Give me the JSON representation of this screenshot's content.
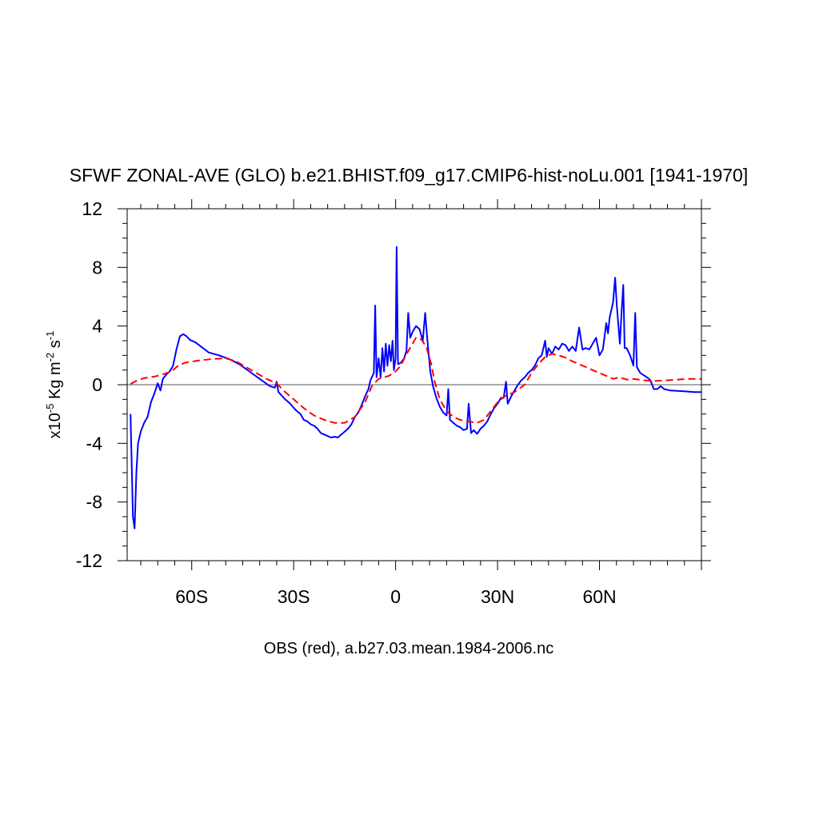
{
  "chart_data": {
    "type": "line",
    "title": "SFWF ZONAL-AVE (GLO) b.e21.BHIST.f09_g17.CMIP6-hist-noLu.001 [1941-1970]",
    "ylabel": {
      "prefix": "x10",
      "exp": "-5",
      "unit1": " Kg m",
      "exp2": "-2",
      "unit2": " s",
      "exp3": "-1"
    },
    "caption": "OBS (red), a.b27.03.mean.1984-2006.nc",
    "xlim": [
      -79,
      90
    ],
    "ylim": [
      -12,
      12
    ],
    "x_ticks": [
      {
        "value": -60,
        "label": "60S"
      },
      {
        "value": -30,
        "label": "30S"
      },
      {
        "value": 0,
        "label": "0"
      },
      {
        "value": 30,
        "label": "30N"
      },
      {
        "value": 60,
        "label": "60N"
      }
    ],
    "y_ticks": [
      {
        "value": 12,
        "label": "12"
      },
      {
        "value": 8,
        "label": "8"
      },
      {
        "value": 4,
        "label": "4"
      },
      {
        "value": 0,
        "label": "0"
      },
      {
        "value": -4,
        "label": "-4"
      },
      {
        "value": -8,
        "label": "-8"
      },
      {
        "value": -12,
        "label": "-12"
      }
    ],
    "zero_line": true,
    "series": [
      {
        "color": "#0000ff",
        "dash": "solid",
        "points": [
          [
            -78,
            -2
          ],
          [
            -77.3,
            -9
          ],
          [
            -76.8,
            -9.8
          ],
          [
            -76.3,
            -6
          ],
          [
            -75.8,
            -4
          ],
          [
            -75,
            -3.2
          ],
          [
            -74,
            -2.6
          ],
          [
            -73,
            -2.2
          ],
          [
            -72,
            -1.2
          ],
          [
            -71,
            -0.6
          ],
          [
            -70,
            0.1
          ],
          [
            -69.2,
            -0.4
          ],
          [
            -68.5,
            0.4
          ],
          [
            -67.5,
            0.7
          ],
          [
            -66.5,
            0.9
          ],
          [
            -65.5,
            1.3
          ],
          [
            -64.5,
            2.4
          ],
          [
            -63.5,
            3.3
          ],
          [
            -62.5,
            3.45
          ],
          [
            -61.5,
            3.3
          ],
          [
            -60.5,
            3.05
          ],
          [
            -59,
            2.9
          ],
          [
            -57,
            2.55
          ],
          [
            -55,
            2.2
          ],
          [
            -52,
            2.0
          ],
          [
            -49,
            1.75
          ],
          [
            -46,
            1.4
          ],
          [
            -43,
            0.9
          ],
          [
            -40,
            0.4
          ],
          [
            -37,
            -0.1
          ],
          [
            -35.5,
            -0.2
          ],
          [
            -35,
            0.2
          ],
          [
            -34.5,
            -0.5
          ],
          [
            -32.5,
            -1.0
          ],
          [
            -31,
            -1.3
          ],
          [
            -29.5,
            -1.7
          ],
          [
            -28,
            -2.0
          ],
          [
            -27,
            -2.4
          ],
          [
            -26,
            -2.5
          ],
          [
            -25,
            -2.7
          ],
          [
            -24,
            -2.8
          ],
          [
            -23,
            -3.0
          ],
          [
            -22,
            -3.3
          ],
          [
            -21,
            -3.4
          ],
          [
            -20,
            -3.5
          ],
          [
            -19,
            -3.6
          ],
          [
            -18,
            -3.55
          ],
          [
            -17,
            -3.6
          ],
          [
            -16,
            -3.4
          ],
          [
            -15,
            -3.2
          ],
          [
            -14,
            -3.0
          ],
          [
            -13,
            -2.7
          ],
          [
            -12,
            -2.2
          ],
          [
            -11,
            -1.9
          ],
          [
            -10,
            -1.4
          ],
          [
            -9,
            -0.8
          ],
          [
            -8,
            -0.3
          ],
          [
            -7.4,
            0.3
          ],
          [
            -6.4,
            0.8
          ],
          [
            -6,
            5.4
          ],
          [
            -5.6,
            0.5
          ],
          [
            -5,
            1.8
          ],
          [
            -4.4,
            0.5
          ],
          [
            -3.9,
            2.5
          ],
          [
            -3.4,
            0.9
          ],
          [
            -2.9,
            2.8
          ],
          [
            -2.4,
            1.3
          ],
          [
            -1.9,
            2.7
          ],
          [
            -1.4,
            1.6
          ],
          [
            -0.9,
            3.0
          ],
          [
            -0.5,
            1.0
          ],
          [
            0,
            1.8
          ],
          [
            0.3,
            9.4
          ],
          [
            0.7,
            1.4
          ],
          [
            1.6,
            1.5
          ],
          [
            2.5,
            1.8
          ],
          [
            3.2,
            2.3
          ],
          [
            3.7,
            4.9
          ],
          [
            4.3,
            3.2
          ],
          [
            5,
            3.6
          ],
          [
            6,
            4.0
          ],
          [
            7,
            3.8
          ],
          [
            8,
            3.0
          ],
          [
            8.7,
            4.9
          ],
          [
            9.3,
            3.2
          ],
          [
            10.2,
            0.9
          ],
          [
            11,
            -0.1
          ],
          [
            12,
            -0.9
          ],
          [
            13,
            -1.5
          ],
          [
            14,
            -1.9
          ],
          [
            15,
            -2.1
          ],
          [
            15.5,
            -0.3
          ],
          [
            16,
            -2.4
          ],
          [
            17,
            -2.6
          ],
          [
            18,
            -2.8
          ],
          [
            19,
            -2.9
          ],
          [
            20,
            -3.1
          ],
          [
            21,
            -3.0
          ],
          [
            21.5,
            -1.3
          ],
          [
            22.2,
            -3.3
          ],
          [
            23,
            -3.1
          ],
          [
            24,
            -3.35
          ],
          [
            25,
            -3.0
          ],
          [
            26,
            -2.8
          ],
          [
            27,
            -2.5
          ],
          [
            28,
            -2.0
          ],
          [
            29,
            -1.6
          ],
          [
            30,
            -1.3
          ],
          [
            31,
            -0.9
          ],
          [
            31.8,
            -0.9
          ],
          [
            32.5,
            0.2
          ],
          [
            33,
            -1.3
          ],
          [
            34,
            -0.8
          ],
          [
            35,
            -0.4
          ],
          [
            36,
            0
          ],
          [
            37,
            0.3
          ],
          [
            38,
            0.5
          ],
          [
            39,
            0.8
          ],
          [
            40,
            1.0
          ],
          [
            41,
            1.3
          ],
          [
            42,
            1.8
          ],
          [
            43,
            2.0
          ],
          [
            44,
            3.0
          ],
          [
            44.5,
            1.9
          ],
          [
            45,
            2.5
          ],
          [
            46,
            2.1
          ],
          [
            47,
            2.6
          ],
          [
            48,
            2.4
          ],
          [
            49,
            2.8
          ],
          [
            50,
            2.7
          ],
          [
            51,
            2.3
          ],
          [
            52,
            2.6
          ],
          [
            53,
            2.3
          ],
          [
            54,
            3.9
          ],
          [
            55,
            2.4
          ],
          [
            56,
            2.5
          ],
          [
            57,
            2.4
          ],
          [
            58,
            2.8
          ],
          [
            59,
            3.2
          ],
          [
            60,
            2.0
          ],
          [
            61,
            2.4
          ],
          [
            62,
            4.2
          ],
          [
            62.5,
            3.5
          ],
          [
            63,
            4.6
          ],
          [
            64,
            5.6
          ],
          [
            64.6,
            7.3
          ],
          [
            65.1,
            5.4
          ],
          [
            66,
            2.8
          ],
          [
            66.5,
            5.0
          ],
          [
            67,
            6.8
          ],
          [
            67.4,
            2.5
          ],
          [
            68,
            2.5
          ],
          [
            69,
            2.0
          ],
          [
            70,
            1.3
          ],
          [
            70.5,
            4.9
          ],
          [
            71,
            1.2
          ],
          [
            72,
            0.8
          ],
          [
            74,
            0.5
          ],
          [
            75,
            0.3
          ],
          [
            76,
            -0.3
          ],
          [
            77,
            -0.3
          ],
          [
            78,
            -0.1
          ],
          [
            79,
            -0.3
          ],
          [
            81,
            -0.4
          ],
          [
            85,
            -0.45
          ],
          [
            88,
            -0.5
          ],
          [
            90,
            -0.5
          ]
        ]
      },
      {
        "color": "#ff0000",
        "dash": "dashed",
        "points": [
          [
            -78,
            0.05
          ],
          [
            -76,
            0.3
          ],
          [
            -74,
            0.45
          ],
          [
            -71,
            0.55
          ],
          [
            -68,
            0.75
          ],
          [
            -66,
            0.9
          ],
          [
            -64,
            1.3
          ],
          [
            -62,
            1.5
          ],
          [
            -58,
            1.65
          ],
          [
            -54,
            1.75
          ],
          [
            -50,
            1.8
          ],
          [
            -47,
            1.6
          ],
          [
            -44,
            1.2
          ],
          [
            -41,
            0.8
          ],
          [
            -38,
            0.4
          ],
          [
            -35,
            0.1
          ],
          [
            -33,
            -0.4
          ],
          [
            -30,
            -1.0
          ],
          [
            -27,
            -1.6
          ],
          [
            -24,
            -2.1
          ],
          [
            -21,
            -2.4
          ],
          [
            -18,
            -2.6
          ],
          [
            -15,
            -2.6
          ],
          [
            -12,
            -2.2
          ],
          [
            -9,
            -1.2
          ],
          [
            -7,
            -0.1
          ],
          [
            -5,
            0.4
          ],
          [
            -2,
            0.6
          ],
          [
            0,
            0.9
          ],
          [
            1.5,
            1.3
          ],
          [
            3,
            2.0
          ],
          [
            4.5,
            2.6
          ],
          [
            6,
            3.2
          ],
          [
            7.5,
            3.1
          ],
          [
            9,
            2.6
          ],
          [
            10.5,
            1.4
          ],
          [
            11.5,
            0.2
          ],
          [
            13,
            -1.0
          ],
          [
            15,
            -1.8
          ],
          [
            17,
            -2.2
          ],
          [
            19,
            -2.4
          ],
          [
            21,
            -2.5
          ],
          [
            24,
            -2.6
          ],
          [
            26,
            -2.4
          ],
          [
            28,
            -1.8
          ],
          [
            30,
            -1.2
          ],
          [
            32,
            -0.8
          ],
          [
            35,
            -0.5
          ],
          [
            38,
            0
          ],
          [
            40,
            0.8
          ],
          [
            42,
            1.4
          ],
          [
            44,
            1.9
          ],
          [
            46,
            2.1
          ],
          [
            48,
            2.0
          ],
          [
            50,
            1.85
          ],
          [
            52,
            1.6
          ],
          [
            54,
            1.4
          ],
          [
            56,
            1.2
          ],
          [
            58,
            1.0
          ],
          [
            60,
            0.8
          ],
          [
            62,
            0.6
          ],
          [
            64,
            0.4
          ],
          [
            66,
            0.5
          ],
          [
            68,
            0.35
          ],
          [
            70,
            0.4
          ],
          [
            73,
            0.3
          ],
          [
            76,
            0.25
          ],
          [
            80,
            0.3
          ],
          [
            83,
            0.35
          ],
          [
            86,
            0.4
          ],
          [
            90,
            0.4
          ]
        ]
      }
    ]
  }
}
